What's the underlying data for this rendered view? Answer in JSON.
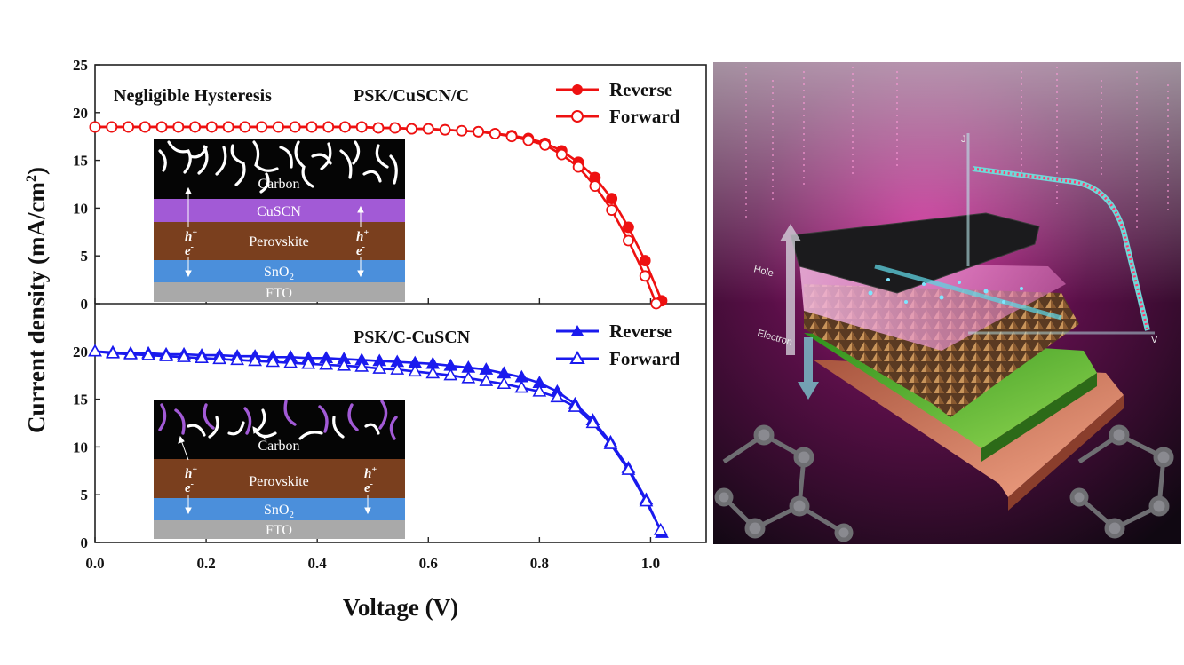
{
  "figure": {
    "xlabel": "Voltage (V)",
    "ylabel": "Current density (mA/cm",
    "ylabel_sup": "2",
    "ylabel_close": ")"
  },
  "chart_data": [
    {
      "type": "line",
      "annotations": [
        "Negligible Hysteresis",
        "PSK/CuSCN/C"
      ],
      "xlabel": "Voltage (V)",
      "ylabel": "Current density (mA/cm2)",
      "xlim": [
        0,
        1.1
      ],
      "ylim": [
        0,
        25
      ],
      "x_ticks": [
        "0.0",
        "0.2",
        "0.4",
        "0.6",
        "0.8",
        "1.0"
      ],
      "y_ticks": [
        "0",
        "5",
        "10",
        "15",
        "20",
        "25"
      ],
      "legend_position": "top-right",
      "series": [
        {
          "name": "Reverse",
          "color": "#ee1111",
          "marker": "filled-circle",
          "x": [
            0.0,
            0.03,
            0.06,
            0.09,
            0.12,
            0.15,
            0.18,
            0.21,
            0.24,
            0.27,
            0.3,
            0.33,
            0.36,
            0.39,
            0.42,
            0.45,
            0.48,
            0.51,
            0.54,
            0.57,
            0.6,
            0.63,
            0.66,
            0.69,
            0.72,
            0.75,
            0.78,
            0.81,
            0.84,
            0.87,
            0.9,
            0.93,
            0.96,
            0.99,
            1.02
          ],
          "values": [
            18.5,
            18.5,
            18.5,
            18.5,
            18.5,
            18.5,
            18.5,
            18.5,
            18.5,
            18.5,
            18.5,
            18.5,
            18.5,
            18.5,
            18.5,
            18.5,
            18.5,
            18.4,
            18.4,
            18.3,
            18.3,
            18.2,
            18.1,
            18.0,
            17.8,
            17.6,
            17.3,
            16.8,
            16.0,
            14.8,
            13.2,
            11.0,
            8.0,
            4.5,
            0.3
          ]
        },
        {
          "name": "Forward",
          "color": "#ee1111",
          "marker": "open-circle",
          "x": [
            0.0,
            0.03,
            0.06,
            0.09,
            0.12,
            0.15,
            0.18,
            0.21,
            0.24,
            0.27,
            0.3,
            0.33,
            0.36,
            0.39,
            0.42,
            0.45,
            0.48,
            0.51,
            0.54,
            0.57,
            0.6,
            0.63,
            0.66,
            0.69,
            0.72,
            0.75,
            0.78,
            0.81,
            0.84,
            0.87,
            0.9,
            0.93,
            0.96,
            0.99,
            1.01
          ],
          "values": [
            18.5,
            18.5,
            18.5,
            18.5,
            18.5,
            18.5,
            18.5,
            18.5,
            18.5,
            18.5,
            18.5,
            18.5,
            18.5,
            18.5,
            18.5,
            18.5,
            18.5,
            18.4,
            18.4,
            18.3,
            18.3,
            18.2,
            18.1,
            18.0,
            17.8,
            17.5,
            17.1,
            16.6,
            15.6,
            14.3,
            12.3,
            9.8,
            6.6,
            2.9,
            0.0
          ]
        }
      ],
      "inset": {
        "layers": [
          "Carbon",
          "CuSCN",
          "Perovskite",
          "SnO2",
          "FTO"
        ],
        "hole_label": "h+",
        "electron_label": "e-"
      }
    },
    {
      "type": "line",
      "annotations": [
        "PSK/C-CuSCN"
      ],
      "xlabel": "Voltage (V)",
      "ylabel": "Current density (mA/cm2)",
      "xlim": [
        0,
        1.1
      ],
      "ylim": [
        0,
        25
      ],
      "x_ticks": [
        "0.0",
        "0.2",
        "0.4",
        "0.6",
        "0.8",
        "1.0"
      ],
      "y_ticks": [
        "0",
        "5",
        "10",
        "15",
        "20"
      ],
      "legend_position": "top-right",
      "series": [
        {
          "name": "Reverse",
          "color": "#1a1aee",
          "marker": "filled-triangle",
          "x": [
            0.0,
            0.032,
            0.064,
            0.096,
            0.128,
            0.16,
            0.192,
            0.224,
            0.256,
            0.288,
            0.32,
            0.352,
            0.384,
            0.416,
            0.448,
            0.48,
            0.512,
            0.544,
            0.576,
            0.608,
            0.64,
            0.672,
            0.704,
            0.736,
            0.768,
            0.8,
            0.832,
            0.864,
            0.896,
            0.928,
            0.96,
            0.992,
            1.02
          ],
          "values": [
            20.0,
            19.9,
            19.8,
            19.8,
            19.7,
            19.7,
            19.6,
            19.6,
            19.5,
            19.5,
            19.4,
            19.4,
            19.3,
            19.3,
            19.2,
            19.1,
            19.0,
            18.9,
            18.8,
            18.7,
            18.5,
            18.3,
            18.1,
            17.7,
            17.3,
            16.7,
            15.8,
            14.5,
            12.8,
            10.5,
            7.8,
            4.5,
            1.0
          ]
        },
        {
          "name": "Forward",
          "color": "#1a1aee",
          "marker": "open-triangle",
          "x": [
            0.0,
            0.032,
            0.064,
            0.096,
            0.128,
            0.16,
            0.192,
            0.224,
            0.256,
            0.288,
            0.32,
            0.352,
            0.384,
            0.416,
            0.448,
            0.48,
            0.512,
            0.544,
            0.576,
            0.608,
            0.64,
            0.672,
            0.704,
            0.736,
            0.768,
            0.8,
            0.832,
            0.864,
            0.896,
            0.928,
            0.96,
            0.992,
            1.018
          ],
          "values": [
            20.0,
            19.8,
            19.7,
            19.6,
            19.5,
            19.4,
            19.3,
            19.2,
            19.1,
            19.0,
            18.9,
            18.8,
            18.7,
            18.6,
            18.5,
            18.4,
            18.2,
            18.1,
            17.9,
            17.7,
            17.5,
            17.2,
            16.9,
            16.6,
            16.2,
            15.8,
            15.2,
            14.2,
            12.5,
            10.3,
            7.6,
            4.3,
            1.3
          ]
        }
      ],
      "inset": {
        "layers": [
          "Carbon",
          "Perovskite",
          "SnO2",
          "FTO"
        ],
        "hole_label": "h+",
        "electron_label": "e-"
      }
    }
  ],
  "artwork": {
    "labels": [
      "J",
      "V",
      "Hole",
      "Electron"
    ],
    "colors": {
      "background": "#1a0a18",
      "glow": "#d0309a",
      "curve": "#e04a7a",
      "green_layer": "#6fbf3c",
      "salmon_layer": "#e38a70"
    }
  }
}
